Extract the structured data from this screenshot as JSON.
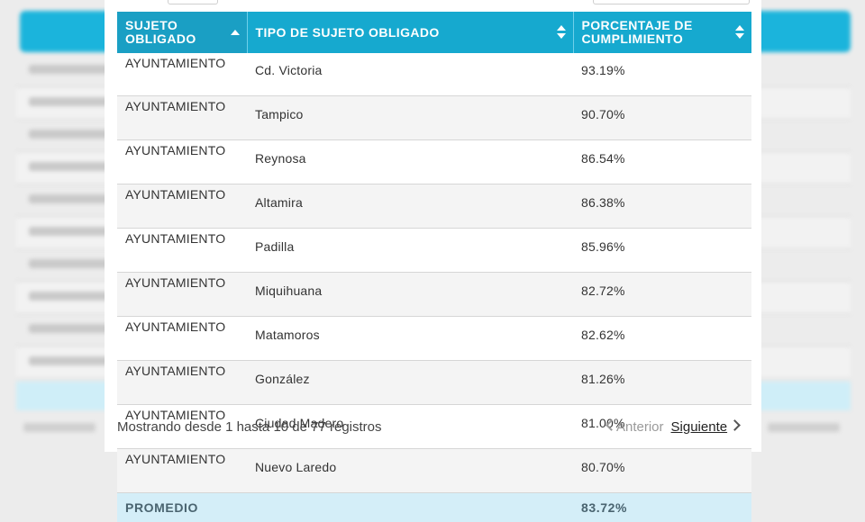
{
  "table": {
    "headers": [
      {
        "label": "SUJETO OBLIGADO",
        "sort": "asc"
      },
      {
        "label": "TIPO DE SUJETO OBLIGADO",
        "sort": "both"
      },
      {
        "label": "PORCENTAJE DE CUMPLIMIENTO",
        "sort": "both"
      }
    ],
    "rows": [
      {
        "tipo": "AYUNTAMIENTO",
        "municipio": "Cd. Victoria",
        "porcentaje": "93.19%"
      },
      {
        "tipo": "AYUNTAMIENTO",
        "municipio": "Tampico",
        "porcentaje": "90.70%"
      },
      {
        "tipo": "AYUNTAMIENTO",
        "municipio": "Reynosa",
        "porcentaje": "86.54%"
      },
      {
        "tipo": "AYUNTAMIENTO",
        "municipio": "Altamira",
        "porcentaje": "86.38%"
      },
      {
        "tipo": "AYUNTAMIENTO",
        "municipio": "Padilla",
        "porcentaje": "85.96%"
      },
      {
        "tipo": "AYUNTAMIENTO",
        "municipio": "Miquihuana",
        "porcentaje": "82.72%"
      },
      {
        "tipo": "AYUNTAMIENTO",
        "municipio": "Matamoros",
        "porcentaje": "82.62%"
      },
      {
        "tipo": "AYUNTAMIENTO",
        "municipio": "González",
        "porcentaje": "81.26%"
      },
      {
        "tipo": "AYUNTAMIENTO",
        "municipio": "Ciudad Madero",
        "porcentaje": "81.00%"
      },
      {
        "tipo": "AYUNTAMIENTO",
        "municipio": "Nuevo Laredo",
        "porcentaje": "80.70%"
      }
    ],
    "footer": {
      "label": "PROMEDIO",
      "value": "83.72%"
    }
  },
  "pagination": {
    "info": "Mostrando desde 1 hasta 10 de 77 registros",
    "prev_label": "Anterior",
    "next_label": "Siguiente"
  },
  "colors": {
    "header_bg": "#16a9cf",
    "footer_bg": "#d4eef8"
  }
}
